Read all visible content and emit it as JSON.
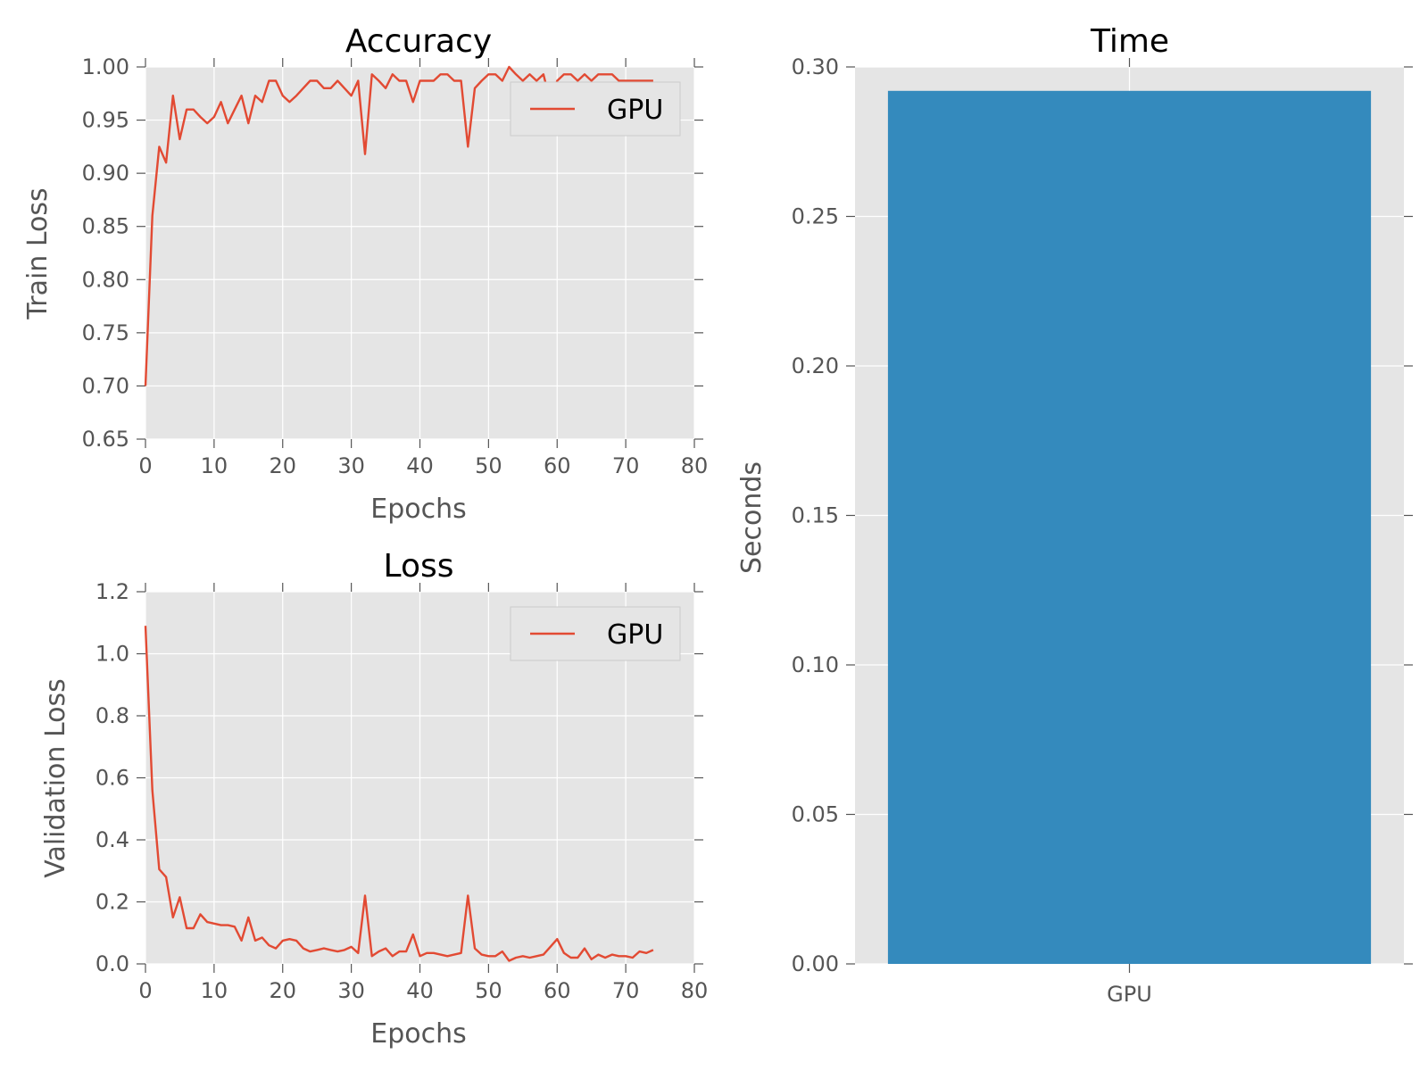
{
  "colors": {
    "panel_bg": "#E5E5E5",
    "grid": "#FFFFFF",
    "line": "#E24A33",
    "bar": "#348ABD",
    "tick": "#555555"
  },
  "chart_data": [
    {
      "type": "line",
      "title": "Accuracy",
      "xlabel": "Epochs",
      "ylabel": "Train Loss",
      "xlim": [
        0,
        80
      ],
      "ylim": [
        0.65,
        1.0
      ],
      "xticks": [
        "0",
        "10",
        "20",
        "30",
        "40",
        "50",
        "60",
        "70",
        "80"
      ],
      "yticks": [
        "0.65",
        "0.70",
        "0.75",
        "0.80",
        "0.85",
        "0.90",
        "0.95",
        "1.00"
      ],
      "grid": true,
      "legend_position": "top-right",
      "x": [
        0,
        1,
        2,
        3,
        4,
        5,
        6,
        7,
        8,
        9,
        10,
        11,
        12,
        13,
        14,
        15,
        16,
        17,
        18,
        19,
        20,
        21,
        22,
        23,
        24,
        25,
        26,
        27,
        28,
        29,
        30,
        31,
        32,
        33,
        34,
        35,
        36,
        37,
        38,
        39,
        40,
        41,
        42,
        43,
        44,
        45,
        46,
        47,
        48,
        49,
        50,
        51,
        52,
        53,
        54,
        55,
        56,
        57,
        58,
        59,
        60,
        61,
        62,
        63,
        64,
        65,
        66,
        67,
        68,
        69,
        70,
        71,
        72,
        73,
        74
      ],
      "series": [
        {
          "name": "GPU",
          "values": [
            0.7,
            0.86,
            0.925,
            0.91,
            0.973,
            0.932,
            0.96,
            0.96,
            0.953,
            0.947,
            0.953,
            0.967,
            0.947,
            0.96,
            0.973,
            0.947,
            0.973,
            0.967,
            0.987,
            0.987,
            0.973,
            0.967,
            0.973,
            0.98,
            0.987,
            0.987,
            0.98,
            0.98,
            0.987,
            0.98,
            0.973,
            0.987,
            0.918,
            0.993,
            0.987,
            0.98,
            0.993,
            0.987,
            0.987,
            0.967,
            0.987,
            0.987,
            0.987,
            0.993,
            0.993,
            0.987,
            0.987,
            0.925,
            0.98,
            0.987,
            0.993,
            0.993,
            0.987,
            1.0,
            0.993,
            0.987,
            0.993,
            0.987,
            0.993,
            0.967,
            0.987,
            0.993,
            0.993,
            0.987,
            0.993,
            0.987,
            0.993,
            0.993,
            0.993,
            0.987,
            0.987,
            0.987,
            0.987,
            0.987,
            0.987
          ]
        }
      ]
    },
    {
      "type": "line",
      "title": "Loss",
      "xlabel": "Epochs",
      "ylabel": "Validation Loss",
      "xlim": [
        0,
        80
      ],
      "ylim": [
        0.0,
        1.2
      ],
      "xticks": [
        "0",
        "10",
        "20",
        "30",
        "40",
        "50",
        "60",
        "70",
        "80"
      ],
      "yticks": [
        "0.0",
        "0.2",
        "0.4",
        "0.6",
        "0.8",
        "1.0",
        "1.2"
      ],
      "grid": true,
      "legend_position": "top-right",
      "x": [
        0,
        1,
        2,
        3,
        4,
        5,
        6,
        7,
        8,
        9,
        10,
        11,
        12,
        13,
        14,
        15,
        16,
        17,
        18,
        19,
        20,
        21,
        22,
        23,
        24,
        25,
        26,
        27,
        28,
        29,
        30,
        31,
        32,
        33,
        34,
        35,
        36,
        37,
        38,
        39,
        40,
        41,
        42,
        43,
        44,
        45,
        46,
        47,
        48,
        49,
        50,
        51,
        52,
        53,
        54,
        55,
        56,
        57,
        58,
        59,
        60,
        61,
        62,
        63,
        64,
        65,
        66,
        67,
        68,
        69,
        70,
        71,
        72,
        73,
        74
      ],
      "series": [
        {
          "name": "GPU",
          "values": [
            1.09,
            0.56,
            0.305,
            0.28,
            0.15,
            0.215,
            0.115,
            0.115,
            0.16,
            0.135,
            0.13,
            0.125,
            0.125,
            0.12,
            0.075,
            0.15,
            0.075,
            0.085,
            0.06,
            0.05,
            0.075,
            0.08,
            0.075,
            0.05,
            0.04,
            0.045,
            0.05,
            0.045,
            0.04,
            0.045,
            0.055,
            0.035,
            0.22,
            0.025,
            0.04,
            0.05,
            0.025,
            0.04,
            0.04,
            0.095,
            0.025,
            0.035,
            0.035,
            0.03,
            0.025,
            0.03,
            0.035,
            0.22,
            0.05,
            0.03,
            0.025,
            0.025,
            0.04,
            0.01,
            0.02,
            0.025,
            0.02,
            0.025,
            0.03,
            0.055,
            0.08,
            0.035,
            0.02,
            0.02,
            0.05,
            0.015,
            0.03,
            0.02,
            0.03,
            0.025,
            0.025,
            0.02,
            0.04,
            0.035,
            0.045
          ]
        }
      ]
    },
    {
      "type": "bar",
      "title": "Time",
      "xlabel": "",
      "ylabel": "Seconds",
      "ylim": [
        0.0,
        0.3
      ],
      "yticks": [
        "0.00",
        "0.05",
        "0.10",
        "0.15",
        "0.20",
        "0.25",
        "0.30"
      ],
      "grid": true,
      "categories": [
        "GPU"
      ],
      "values": [
        0.292
      ]
    }
  ]
}
